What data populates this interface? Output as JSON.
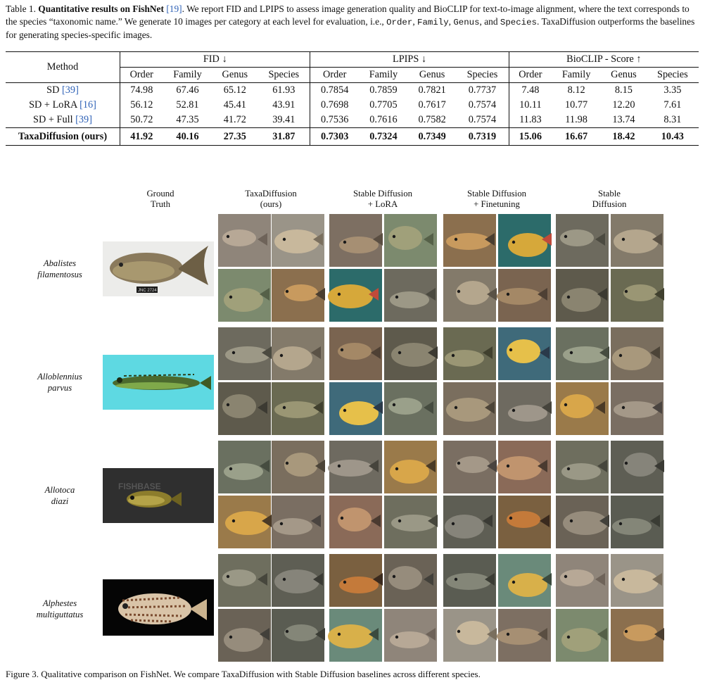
{
  "caption": {
    "prefix": "Table 1. ",
    "bold": "Quantitative results on FishNet",
    "cite1": "[19]",
    "text1": ". We report FID and LPIPS to assess image generation quality and BioCLIP for text-to-image alignment, where the text corresponds to the species “taxonomic name.” We generate 10 images per category at each level for evaluation, i.e., ",
    "lvl_order": "Order",
    "lvl_family": "Family",
    "lvl_genus": "Genus",
    "and": ", and ",
    "lvl_species": "Species",
    "text2": ". TaxaDiffusion outperforms the baselines for generating species-specific images."
  },
  "table": {
    "method_header": "Method",
    "groups": [
      "FID ↓",
      "LPIPS ↓",
      "BioCLIP - Score ↑"
    ],
    "subcols": [
      "Order",
      "Family",
      "Genus",
      "Species"
    ],
    "rows": [
      {
        "method": "SD ",
        "cite": "[39]",
        "values": [
          "74.98",
          "67.46",
          "65.12",
          "61.93",
          "0.7854",
          "0.7859",
          "0.7821",
          "0.7737",
          "7.48",
          "8.12",
          "8.15",
          "3.35"
        ]
      },
      {
        "method": "SD + LoRA ",
        "cite": "[16]",
        "values": [
          "56.12",
          "52.81",
          "45.41",
          "43.91",
          "0.7698",
          "0.7705",
          "0.7617",
          "0.7574",
          "10.11",
          "10.77",
          "12.20",
          "7.61"
        ]
      },
      {
        "method": "SD + Full ",
        "cite": "[39]",
        "values": [
          "50.72",
          "47.35",
          "41.72",
          "39.41",
          "0.7536",
          "0.7616",
          "0.7582",
          "0.7574",
          "11.83",
          "11.98",
          "13.74",
          "8.31"
        ]
      }
    ],
    "ours": {
      "method": "TaxaDiffusion (ours)",
      "values": [
        "41.92",
        "40.16",
        "27.35",
        "31.87",
        "0.7303",
        "0.7324",
        "0.7349",
        "0.7319",
        "15.06",
        "16.67",
        "18.42",
        "10.43"
      ]
    }
  },
  "figure": {
    "col_headers": [
      {
        "line1": "Ground",
        "line2": "Truth"
      },
      {
        "line1": "TaxaDiffusion",
        "line2": "(ours)"
      },
      {
        "line1": "Stable Diffusion",
        "line2": "+ LoRA"
      },
      {
        "line1": "Stable Diffusion",
        "line2": "+ Finetuning"
      },
      {
        "line1": "Stable",
        "line2": "Diffusion"
      }
    ],
    "species": [
      {
        "line1": "Abalistes",
        "line2": "filamentosus"
      },
      {
        "line1": "Alloblennius",
        "line2": "parvus"
      },
      {
        "line1": "Allotoca",
        "line2": "diazi"
      },
      {
        "line1": "Alphestes",
        "line2": "multiguttatus"
      }
    ],
    "gt_labels": {
      "tag": "JNC 2724",
      "watermark": "FISHBASE"
    }
  },
  "bottom_caption": "Figure 3. Qualitative comparison on FishNet. We compare TaxaDiffusion with Stable Diffusion baselines across different species."
}
